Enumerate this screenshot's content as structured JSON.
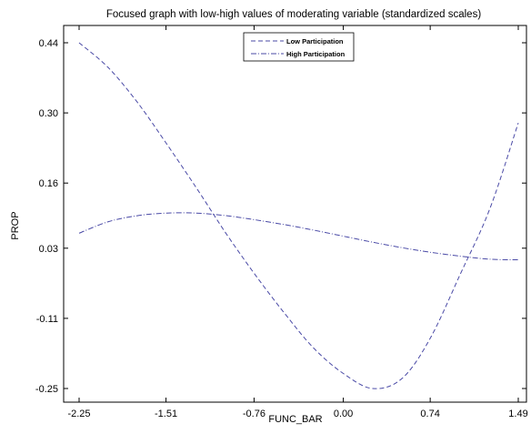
{
  "chart_data": {
    "type": "line",
    "title": "Focused graph with low-high values of moderating variable (standardized scales)",
    "xlabel": "FUNC_BAR",
    "ylabel": "PROP",
    "xlim": [
      -2.25,
      1.49
    ],
    "ylim": [
      -0.25,
      0.44
    ],
    "x_ticks": [
      -2.25,
      -1.51,
      -0.76,
      0.0,
      0.74,
      1.49
    ],
    "x_tick_labels": [
      "-2.25",
      "-1.51",
      "-0.76",
      "0.00",
      "0.74",
      "1.49"
    ],
    "y_ticks": [
      0.44,
      0.3,
      0.16,
      0.03,
      -0.11,
      -0.25
    ],
    "y_tick_labels": [
      "0.44",
      "0.30",
      "0.16",
      "0.03",
      "-0.11",
      "-0.25"
    ],
    "grid": false,
    "legend_position": "top-center",
    "series": [
      {
        "name": "Low Participation",
        "style": "dashed",
        "color": "#4a4aa6",
        "x": [
          -2.25,
          -2.0,
          -1.75,
          -1.51,
          -1.25,
          -1.0,
          -0.76,
          -0.5,
          -0.25,
          0.0,
          0.25,
          0.5,
          0.74,
          1.0,
          1.25,
          1.49
        ],
        "y": [
          0.44,
          0.39,
          0.32,
          0.24,
          0.15,
          0.06,
          -0.02,
          -0.1,
          -0.17,
          -0.22,
          -0.25,
          -0.23,
          -0.15,
          -0.02,
          0.11,
          0.28
        ]
      },
      {
        "name": "High Participation",
        "style": "dashdot",
        "color": "#4a4aa6",
        "x": [
          -2.25,
          -2.0,
          -1.75,
          -1.51,
          -1.25,
          -1.0,
          -0.76,
          -0.5,
          -0.25,
          0.0,
          0.25,
          0.5,
          0.74,
          1.0,
          1.25,
          1.49
        ],
        "y": [
          0.06,
          0.083,
          0.095,
          0.1,
          0.1,
          0.095,
          0.087,
          0.077,
          0.066,
          0.054,
          0.042,
          0.031,
          0.022,
          0.014,
          0.008,
          0.007
        ]
      }
    ]
  }
}
